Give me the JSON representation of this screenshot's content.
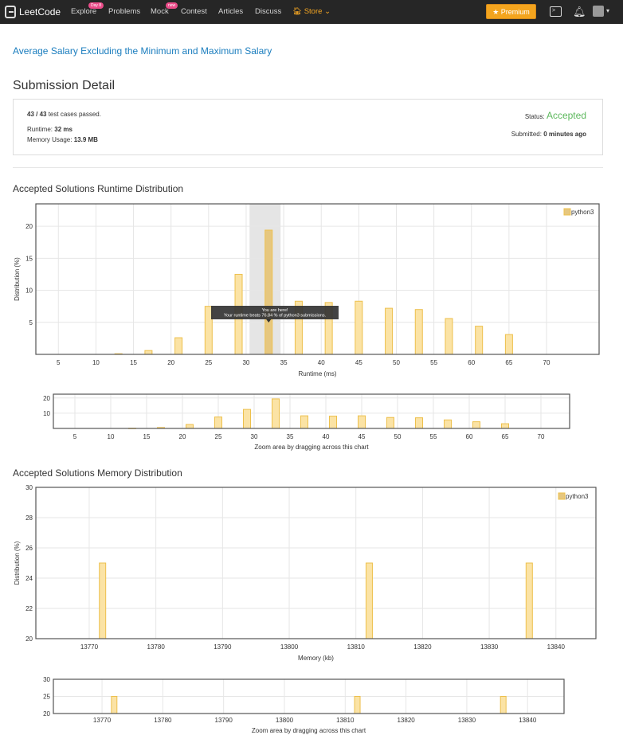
{
  "nav": {
    "logo_text": "LeetCode",
    "links": [
      {
        "label": "Explore",
        "badge": "Day 8"
      },
      {
        "label": "Problems",
        "badge": ""
      },
      {
        "label": "Mock",
        "badge": "new"
      },
      {
        "label": "Contest",
        "badge": ""
      },
      {
        "label": "Articles",
        "badge": ""
      },
      {
        "label": "Discuss",
        "badge": ""
      },
      {
        "label": "Store",
        "badge": ""
      }
    ],
    "store_caret": "⌄",
    "premium_label": "Premium",
    "accent_color": "#f3a41e"
  },
  "problem_title": "Average Salary Excluding the Minimum and Maximum Salary",
  "page_title": "Submission Detail",
  "submission": {
    "tests_passed": "43 / 43",
    "tests_suffix": "test cases passed.",
    "runtime_label": "Runtime:",
    "runtime_value": "32 ms",
    "memory_label": "Memory Usage:",
    "memory_value": "13.9 MB",
    "status_label": "Status:",
    "status_value": "Accepted",
    "submitted_label": "Submitted:",
    "submitted_value": "0 minutes ago"
  },
  "runtime_section_title": "Accepted Solutions Runtime Distribution",
  "memory_section_title": "Accepted Solutions Memory Distribution",
  "tooltip": {
    "line1": "You are here!",
    "line2": "Your runtime beats 76.84 % of python3 submissions."
  },
  "zoom_label": "Zoom area by dragging across this chart",
  "chart_data": [
    {
      "type": "bar",
      "title": "",
      "xlabel": "Runtime (ms)",
      "ylabel": "Distribution (%)",
      "xlim": [
        2,
        77
      ],
      "ylim": [
        0,
        23.5
      ],
      "xticks": [
        5,
        10,
        15,
        20,
        25,
        30,
        35,
        40,
        45,
        50,
        55,
        60,
        65,
        70
      ],
      "yticks": [
        5,
        10,
        15,
        20
      ],
      "legend": "top-right",
      "series": [
        {
          "name": "python3",
          "x": [
            13,
            17,
            21,
            25,
            29,
            33,
            37,
            41,
            45,
            49,
            53,
            57,
            61,
            65
          ],
          "values": [
            0.1,
            0.6,
            2.6,
            7.5,
            12.5,
            19.4,
            8.3,
            8.1,
            8.3,
            7.2,
            7.0,
            5.6,
            4.4,
            3.1
          ]
        }
      ],
      "highlight_x": 33,
      "grid": true
    },
    {
      "type": "bar",
      "title": "",
      "xlabel": "Zoom area by dragging across this chart",
      "ylabel": "",
      "xlim": [
        2,
        74
      ],
      "ylim": [
        0,
        22.5
      ],
      "xticks": [
        5,
        10,
        15,
        20,
        25,
        30,
        35,
        40,
        45,
        50,
        55,
        60,
        65,
        70
      ],
      "yticks": [
        10,
        20
      ],
      "series": [
        {
          "name": "python3",
          "x": [
            13,
            17,
            21,
            25,
            29,
            33,
            37,
            41,
            45,
            49,
            53,
            57,
            61,
            65
          ],
          "values": [
            0.1,
            0.6,
            2.6,
            7.5,
            12.5,
            19.4,
            8.3,
            8.1,
            8.3,
            7.2,
            7.0,
            5.6,
            4.4,
            3.1
          ]
        }
      ],
      "grid": true
    },
    {
      "type": "bar",
      "title": "",
      "xlabel": "Memory (kb)",
      "ylabel": "Distribution (%)",
      "xlim": [
        13762,
        13846
      ],
      "ylim": [
        20,
        30
      ],
      "xticks": [
        13770,
        13780,
        13790,
        13800,
        13810,
        13820,
        13830,
        13840
      ],
      "yticks": [
        20,
        22,
        24,
        26,
        28,
        30
      ],
      "legend": "top-right",
      "series": [
        {
          "name": "python3",
          "x": [
            13772,
            13812,
            13836
          ],
          "values": [
            25,
            25,
            25
          ]
        }
      ],
      "grid": true
    },
    {
      "type": "bar",
      "title": "",
      "xlabel": "Zoom area by dragging across this chart",
      "ylabel": "",
      "xlim": [
        13762,
        13846
      ],
      "ylim": [
        20,
        30
      ],
      "xticks": [
        13770,
        13780,
        13790,
        13800,
        13810,
        13820,
        13830,
        13840
      ],
      "yticks": [
        20,
        25,
        30
      ],
      "series": [
        {
          "name": "python3",
          "x": [
            13772,
            13812,
            13836
          ],
          "values": [
            25,
            25,
            25
          ]
        }
      ],
      "grid": true
    }
  ],
  "colors": {
    "bar_fill": "#fbe3a5",
    "bar_stroke": "#edc04d",
    "highlight_fill": "#e6c77f",
    "highlight_band": "#e5e5e5"
  }
}
